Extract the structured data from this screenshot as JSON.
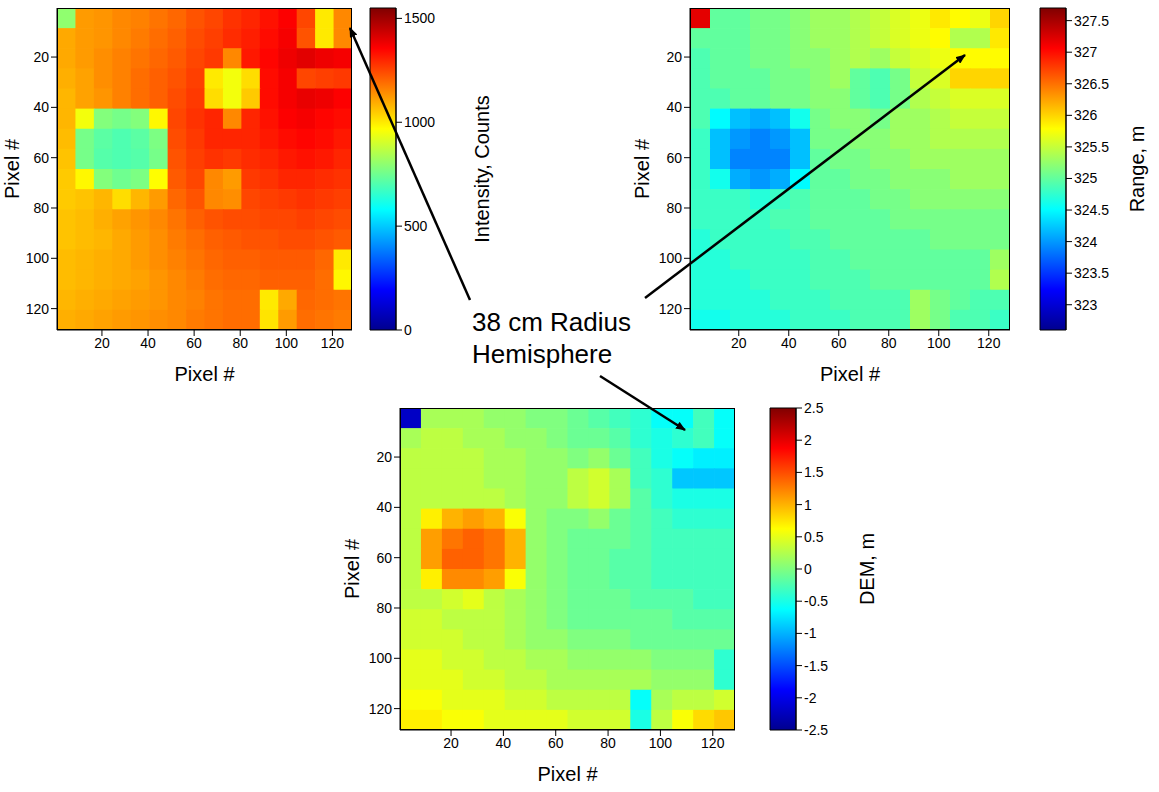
{
  "chart_data": [
    {
      "type": "heatmap",
      "xlabel": "Pixel #",
      "ylabel": "Pixel #",
      "x": [
        4.5,
        12.5,
        20.5,
        28.5,
        36.5,
        44.5,
        52.5,
        60.5,
        68.5,
        76.5,
        84.5,
        92.5,
        100.5,
        108.5,
        116.5,
        124.5
      ],
      "y": [
        4.5,
        12.5,
        20.5,
        28.5,
        36.5,
        44.5,
        52.5,
        60.5,
        68.5,
        76.5,
        84.5,
        92.5,
        100.5,
        108.5,
        116.5,
        124.5
      ],
      "xlim": [
        0.5,
        128.5
      ],
      "ylim": [
        128.5,
        0.5
      ],
      "xticks": [
        20,
        40,
        60,
        80,
        100,
        120
      ],
      "yticks": [
        20,
        40,
        60,
        80,
        100,
        120
      ],
      "cells": [
        [
          800,
          1120,
          1130,
          1150,
          1160,
          1180,
          1200,
          1230,
          1250,
          1280,
          1300,
          1330,
          1360,
          1250,
          1000,
          1150
        ],
        [
          1100,
          1120,
          1130,
          1150,
          1170,
          1190,
          1210,
          1240,
          1260,
          1290,
          1310,
          1340,
          1370,
          1230,
          1000,
          1150
        ],
        [
          1100,
          1120,
          1140,
          1160,
          1180,
          1200,
          1220,
          1250,
          1270,
          1150,
          1320,
          1350,
          1380,
          1400,
          1380,
          1370
        ],
        [
          1090,
          1110,
          1140,
          1160,
          1190,
          1210,
          1230,
          1260,
          1000,
          950,
          1020,
          1340,
          1370,
          1250,
          1260,
          1270
        ],
        [
          1080,
          1110,
          1130,
          1160,
          1190,
          1210,
          1240,
          1270,
          1020,
          950,
          1050,
          1340,
          1370,
          1390,
          1380,
          1360
        ],
        [
          1080,
          950,
          780,
          760,
          780,
          980,
          1250,
          1280,
          1300,
          1150,
          1300,
          1330,
          1360,
          1370,
          1350,
          1340
        ],
        [
          1070,
          760,
          720,
          700,
          720,
          770,
          1240,
          1270,
          1300,
          1300,
          1300,
          1320,
          1340,
          1350,
          1340,
          1320
        ],
        [
          1060,
          760,
          710,
          700,
          710,
          760,
          1230,
          1260,
          1280,
          1270,
          1290,
          1300,
          1320,
          1330,
          1320,
          1300
        ],
        [
          1050,
          980,
          780,
          750,
          770,
          970,
          1220,
          1250,
          1150,
          1120,
          1270,
          1280,
          1300,
          1300,
          1290,
          1280
        ],
        [
          1050,
          1060,
          1080,
          1020,
          1080,
          1120,
          1200,
          1230,
          1150,
          1140,
          1250,
          1260,
          1270,
          1280,
          1270,
          1260
        ],
        [
          1060,
          1070,
          1090,
          1110,
          1130,
          1150,
          1180,
          1210,
          1230,
          1240,
          1240,
          1250,
          1250,
          1260,
          1250,
          1240
        ],
        [
          1060,
          1070,
          1080,
          1100,
          1120,
          1140,
          1170,
          1190,
          1210,
          1220,
          1230,
          1230,
          1240,
          1240,
          1230,
          1220
        ],
        [
          1070,
          1080,
          1090,
          1100,
          1120,
          1140,
          1160,
          1180,
          1200,
          1210,
          1210,
          1220,
          1220,
          1220,
          1200,
          1000
        ],
        [
          1070,
          1080,
          1090,
          1100,
          1110,
          1130,
          1150,
          1170,
          1190,
          1200,
          1200,
          1210,
          1210,
          1210,
          1190,
          980
        ],
        [
          1080,
          1090,
          1100,
          1110,
          1120,
          1130,
          1150,
          1160,
          1180,
          1190,
          1190,
          1000,
          1100,
          1200,
          1190,
          1180
        ],
        [
          1090,
          1100,
          1110,
          1120,
          1130,
          1140,
          1150,
          1170,
          1180,
          1190,
          1190,
          1010,
          1120,
          1190,
          1180,
          1170
        ]
      ],
      "colorbar_label": "Intensity, Counts",
      "colorbar_range": [
        0,
        1550
      ],
      "colorbar_ticks": [
        0,
        500,
        1000,
        1500
      ]
    },
    {
      "type": "heatmap",
      "xlabel": "Pixel #",
      "ylabel": "Pixel #",
      "x": [
        4.5,
        12.5,
        20.5,
        28.5,
        36.5,
        44.5,
        52.5,
        60.5,
        68.5,
        76.5,
        84.5,
        92.5,
        100.5,
        108.5,
        116.5,
        124.5
      ],
      "y": [
        4.5,
        12.5,
        20.5,
        28.5,
        36.5,
        44.5,
        52.5,
        60.5,
        68.5,
        76.5,
        84.5,
        92.5,
        100.5,
        108.5,
        116.5,
        124.5
      ],
      "xlim": [
        0.5,
        128.5
      ],
      "ylim": [
        128.5,
        0.5
      ],
      "xticks": [
        20,
        40,
        60,
        80,
        100,
        120
      ],
      "yticks": [
        20,
        40,
        60,
        80,
        100,
        120
      ],
      "cells": [
        [
          327.2,
          325.0,
          325.0,
          325.1,
          325.1,
          325.2,
          325.3,
          325.3,
          325.4,
          325.5,
          325.6,
          325.7,
          325.9,
          325.8,
          325.7,
          326.0
        ],
        [
          325.0,
          325.0,
          325.0,
          325.1,
          325.1,
          325.2,
          325.3,
          325.3,
          325.4,
          325.5,
          325.6,
          325.7,
          325.8,
          325.4,
          325.4,
          325.9
        ],
        [
          324.9,
          325.0,
          325.0,
          325.1,
          325.1,
          325.2,
          325.2,
          325.3,
          325.4,
          325.3,
          325.5,
          325.6,
          325.7,
          325.8,
          325.8,
          325.8
        ],
        [
          324.9,
          325.0,
          325.0,
          325.0,
          325.1,
          325.1,
          325.2,
          325.3,
          325.0,
          324.9,
          325.1,
          325.5,
          325.6,
          326.0,
          326.0,
          326.0
        ],
        [
          324.9,
          324.9,
          325.0,
          325.0,
          325.1,
          325.1,
          325.2,
          325.2,
          325.0,
          324.9,
          325.1,
          325.4,
          325.5,
          325.6,
          325.6,
          325.6
        ],
        [
          324.9,
          324.5,
          324.2,
          324.1,
          324.2,
          324.6,
          325.1,
          325.2,
          325.2,
          325.1,
          325.3,
          325.3,
          325.4,
          325.5,
          325.5,
          325.5
        ],
        [
          324.8,
          324.2,
          324.0,
          323.9,
          324.0,
          324.2,
          325.1,
          325.1,
          325.2,
          325.2,
          325.3,
          325.3,
          325.4,
          325.4,
          325.4,
          325.4
        ],
        [
          324.8,
          324.2,
          323.9,
          323.9,
          323.9,
          324.2,
          325.0,
          325.1,
          325.1,
          325.2,
          325.2,
          325.3,
          325.3,
          325.3,
          325.3,
          325.3
        ],
        [
          324.8,
          324.6,
          324.1,
          324.0,
          324.1,
          324.5,
          325.0,
          325.0,
          325.1,
          325.1,
          325.2,
          325.2,
          325.2,
          325.3,
          325.3,
          325.3
        ],
        [
          324.8,
          324.8,
          324.8,
          324.7,
          324.8,
          324.9,
          325.0,
          325.0,
          325.0,
          325.1,
          325.1,
          325.2,
          325.2,
          325.2,
          325.2,
          325.2
        ],
        [
          324.8,
          324.8,
          324.8,
          324.8,
          324.9,
          324.9,
          325.0,
          325.0,
          325.0,
          325.0,
          325.1,
          325.1,
          325.1,
          325.1,
          325.1,
          325.1
        ],
        [
          324.7,
          324.8,
          324.8,
          324.8,
          324.8,
          324.9,
          324.9,
          325.0,
          325.0,
          325.0,
          325.0,
          325.0,
          325.1,
          325.1,
          325.1,
          325.1
        ],
        [
          324.7,
          324.7,
          324.8,
          324.8,
          324.8,
          324.8,
          324.9,
          324.9,
          325.0,
          325.0,
          325.0,
          325.0,
          325.0,
          325.0,
          325.0,
          325.3
        ],
        [
          324.7,
          324.7,
          324.7,
          324.8,
          324.8,
          324.8,
          324.9,
          324.9,
          324.9,
          325.0,
          325.0,
          325.0,
          325.0,
          325.0,
          325.0,
          325.4
        ],
        [
          324.7,
          324.7,
          324.7,
          324.7,
          324.8,
          324.8,
          324.8,
          324.9,
          324.9,
          324.9,
          324.9,
          325.3,
          325.1,
          325.0,
          324.9,
          324.9
        ],
        [
          324.6,
          324.6,
          324.7,
          324.7,
          324.7,
          324.8,
          324.8,
          324.8,
          324.9,
          324.9,
          324.9,
          325.3,
          325.1,
          324.9,
          324.9,
          324.8
        ]
      ],
      "colorbar_label": "Range, m",
      "colorbar_range": [
        322.6,
        327.7
      ],
      "colorbar_ticks": [
        323,
        323.5,
        324,
        324.5,
        325,
        325.5,
        326,
        326.5,
        327,
        327.5
      ]
    },
    {
      "type": "heatmap",
      "xlabel": "Pixel #",
      "ylabel": "Pixel #",
      "x": [
        4.5,
        12.5,
        20.5,
        28.5,
        36.5,
        44.5,
        52.5,
        60.5,
        68.5,
        76.5,
        84.5,
        92.5,
        100.5,
        108.5,
        116.5,
        124.5
      ],
      "y": [
        4.5,
        12.5,
        20.5,
        28.5,
        36.5,
        44.5,
        52.5,
        60.5,
        68.5,
        76.5,
        84.5,
        92.5,
        100.5,
        108.5,
        116.5,
        124.5
      ],
      "xlim": [
        0.5,
        128.5
      ],
      "ylim": [
        128.5,
        0.5
      ],
      "xticks": [
        20,
        40,
        60,
        80,
        100,
        120
      ],
      "yticks": [
        20,
        40,
        60,
        80,
        100,
        120
      ],
      "cells": [
        [
          -2.2,
          0.2,
          0.2,
          0.2,
          0.1,
          0.1,
          0.0,
          0.0,
          -0.1,
          -0.2,
          -0.3,
          -0.4,
          -0.6,
          -0.6,
          -0.3,
          -0.6
        ],
        [
          0.2,
          0.3,
          0.3,
          0.2,
          0.2,
          0.1,
          0.1,
          0.0,
          -0.1,
          -0.1,
          -0.2,
          -0.4,
          -0.5,
          -0.4,
          -0.3,
          -0.6
        ],
        [
          0.3,
          0.3,
          0.3,
          0.3,
          0.2,
          0.2,
          0.1,
          0.1,
          0.0,
          0.1,
          -0.1,
          -0.3,
          -0.5,
          -0.6,
          -0.7,
          -0.7
        ],
        [
          0.3,
          0.3,
          0.3,
          0.3,
          0.2,
          0.2,
          0.1,
          0.1,
          0.3,
          0.4,
          0.2,
          -0.3,
          -0.4,
          -0.9,
          -0.9,
          -0.9
        ],
        [
          0.3,
          0.3,
          0.3,
          0.3,
          0.3,
          0.2,
          0.1,
          0.1,
          0.3,
          0.4,
          0.2,
          -0.2,
          -0.4,
          -0.5,
          -0.5,
          -0.5
        ],
        [
          0.3,
          0.7,
          1.0,
          1.1,
          1.0,
          0.6,
          0.1,
          0.0,
          0.0,
          0.1,
          -0.1,
          -0.2,
          -0.3,
          -0.4,
          -0.4,
          -0.4
        ],
        [
          0.3,
          1.1,
          1.3,
          1.4,
          1.3,
          1.0,
          0.1,
          0.0,
          -0.1,
          -0.1,
          -0.1,
          -0.2,
          -0.3,
          -0.3,
          -0.3,
          -0.3
        ],
        [
          0.3,
          1.1,
          1.4,
          1.4,
          1.3,
          1.0,
          0.1,
          0.0,
          -0.1,
          -0.1,
          -0.2,
          -0.2,
          -0.3,
          -0.3,
          -0.3,
          -0.3
        ],
        [
          0.3,
          0.7,
          1.2,
          1.2,
          1.1,
          0.6,
          0.1,
          0.0,
          -0.1,
          -0.1,
          -0.2,
          -0.2,
          -0.3,
          -0.3,
          -0.3,
          -0.3
        ],
        [
          0.3,
          0.3,
          0.4,
          0.5,
          0.3,
          0.2,
          0.1,
          0.0,
          -0.1,
          -0.1,
          -0.1,
          -0.2,
          -0.2,
          -0.2,
          -0.3,
          -0.3
        ],
        [
          0.4,
          0.4,
          0.3,
          0.3,
          0.3,
          0.2,
          0.1,
          0.0,
          -0.1,
          -0.1,
          -0.1,
          -0.1,
          -0.1,
          -0.2,
          -0.2,
          -0.2
        ],
        [
          0.4,
          0.4,
          0.4,
          0.3,
          0.3,
          0.2,
          0.1,
          0.1,
          0.0,
          0.0,
          0.0,
          -0.1,
          -0.1,
          -0.1,
          -0.1,
          -0.1
        ],
        [
          0.5,
          0.5,
          0.4,
          0.4,
          0.3,
          0.3,
          0.2,
          0.2,
          0.1,
          0.1,
          0.1,
          0.1,
          0.0,
          0.0,
          0.0,
          -0.4
        ],
        [
          0.5,
          0.5,
          0.5,
          0.4,
          0.4,
          0.3,
          0.3,
          0.2,
          0.2,
          0.2,
          0.2,
          0.2,
          0.1,
          0.1,
          0.1,
          -0.4
        ],
        [
          0.6,
          0.6,
          0.5,
          0.5,
          0.5,
          0.4,
          0.4,
          0.3,
          0.3,
          0.3,
          0.3,
          -0.6,
          0.2,
          0.3,
          0.3,
          0.4
        ],
        [
          0.7,
          0.7,
          0.6,
          0.6,
          0.5,
          0.5,
          0.5,
          0.5,
          0.4,
          0.4,
          0.4,
          -0.5,
          0.3,
          0.6,
          0.8,
          0.9
        ]
      ],
      "colorbar_label": "DEM, m",
      "colorbar_range": [
        -2.5,
        2.5
      ],
      "colorbar_ticks": [
        -2.5,
        -2,
        -1.5,
        -1,
        -0.5,
        0,
        0.5,
        1,
        1.5,
        2,
        2.5
      ]
    }
  ],
  "annotation": "38 cm Radius Hemisphere"
}
